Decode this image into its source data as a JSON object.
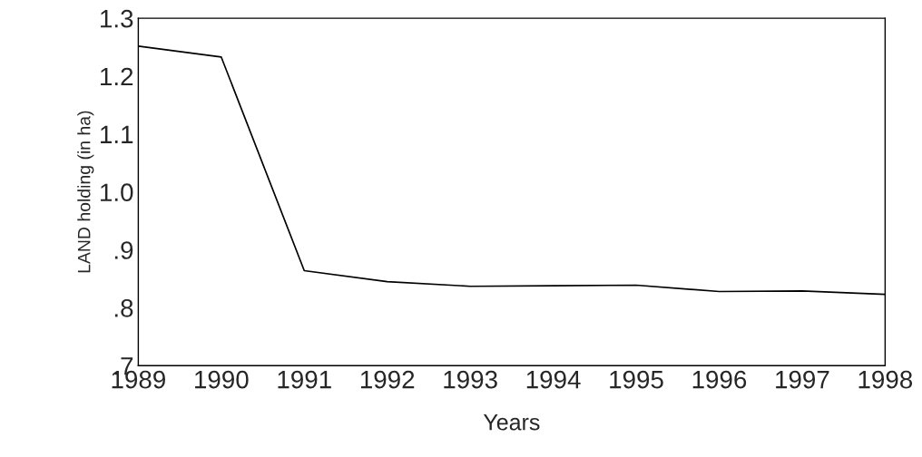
{
  "chart_data": {
    "type": "line",
    "xlabel": "Years",
    "ylabel": "LAND holding (in ha)",
    "x": [
      1989,
      1990,
      1991,
      1992,
      1993,
      1994,
      1995,
      1996,
      1997,
      1998
    ],
    "series": [
      {
        "color": "#000000",
        "values": [
          1.252,
          1.233,
          0.864,
          0.845,
          0.837,
          0.838,
          0.839,
          0.828,
          0.829,
          0.823
        ]
      }
    ],
    "xlim": [
      1989,
      1998
    ],
    "xticks": [
      1989,
      1990,
      1991,
      1992,
      1993,
      1994,
      1995,
      1996,
      1997,
      1998
    ],
    "ylim": [
      0.7,
      1.3
    ],
    "yticks": [
      {
        "value": 0.7,
        "label": ".7"
      },
      {
        "value": 0.8,
        "label": ".8"
      },
      {
        "value": 0.9,
        "label": ".9"
      },
      {
        "value": 1.0,
        "label": "1.0"
      },
      {
        "value": 1.1,
        "label": "1.1"
      },
      {
        "value": 1.2,
        "label": "1.2"
      },
      {
        "value": 1.3,
        "label": "1.3"
      }
    ],
    "grid": false,
    "legend": false,
    "marker": "none",
    "line_style": "solid"
  }
}
